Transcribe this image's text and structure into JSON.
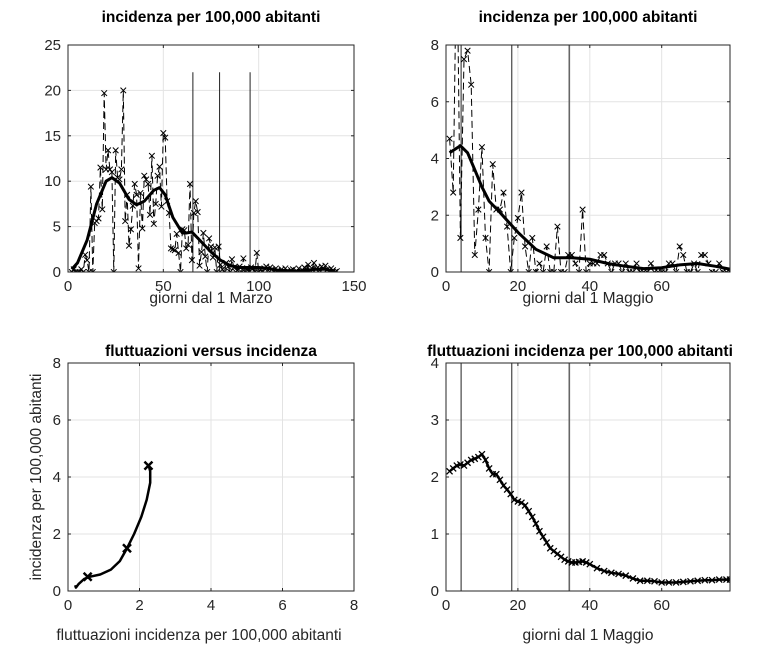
{
  "chart_data": [
    {
      "type": "line",
      "title": "incidenza per 100,000 abitanti",
      "xlabel": "giorni dal 1 Marzo",
      "ylabel": "",
      "xlim": [
        0,
        150
      ],
      "ylim": [
        0,
        25
      ],
      "xticks": [
        0,
        50,
        100,
        150
      ],
      "yticks": [
        0,
        5,
        10,
        15,
        20,
        25
      ],
      "grid": true,
      "vlines": [
        65.5,
        79.5,
        95.5
      ],
      "vline_top": 22,
      "raw": {
        "style": "dashed-with-x-markers",
        "x": [
          2,
          3,
          4,
          5,
          6,
          7,
          8,
          9,
          10,
          11,
          12,
          13,
          14,
          15,
          16,
          17,
          18,
          19,
          20,
          21,
          22,
          23,
          24,
          25,
          26,
          27,
          28,
          29,
          30,
          31,
          32,
          33,
          34,
          35,
          36,
          37,
          38,
          39,
          40,
          41,
          42,
          43,
          44,
          45,
          46,
          47,
          48,
          49,
          50,
          51,
          52,
          53,
          54,
          55,
          56,
          57,
          58,
          59,
          60,
          61,
          62,
          63,
          64,
          65,
          66,
          67,
          68,
          69,
          70,
          71,
          72,
          73,
          74,
          75,
          76,
          77,
          78,
          79,
          80,
          81,
          82,
          83,
          84,
          85,
          86,
          87,
          88,
          89,
          90,
          91,
          92,
          93,
          94,
          95,
          96,
          97,
          98,
          99,
          100,
          101,
          102,
          103,
          104,
          105,
          106,
          107,
          108,
          109,
          110,
          111,
          112,
          113,
          114,
          115,
          116,
          117,
          118,
          119,
          120,
          121,
          122,
          123,
          124,
          125,
          126,
          127,
          128,
          129,
          130,
          131,
          132,
          133,
          134,
          135,
          136,
          137,
          138,
          139,
          140,
          141
        ],
        "y": [
          0,
          0.3,
          0,
          0,
          0,
          0.3,
          0,
          1.9,
          1.3,
          0,
          9.4,
          0,
          5.4,
          5.6,
          5.9,
          11.5,
          6.9,
          19.7,
          11.3,
          13.4,
          11.3,
          11,
          0,
          13.4,
          10.4,
          10.2,
          11.3,
          20,
          5.6,
          8.5,
          2.9,
          4.7,
          7.3,
          9.7,
          8.5,
          0.4,
          8.7,
          4.8,
          10.6,
          10.2,
          9.7,
          6.3,
          12.8,
          5.3,
          7.5,
          10.6,
          11.6,
          7.2,
          15.3,
          14.8,
          7.8,
          6.5,
          2.6,
          2.5,
          2.4,
          4.2,
          2.1,
          0,
          4.7,
          4.6,
          2.6,
          3,
          9.7,
          1.3,
          6.5,
          7.8,
          6.6,
          0.7,
          2.2,
          4.3,
          1.7,
          0,
          3.7,
          2.8,
          1.6,
          2.7,
          0,
          2.8,
          0.8,
          0.3,
          0,
          1,
          0.6,
          0,
          1.4,
          0.5,
          0,
          0.2,
          0.6,
          0,
          1.5,
          0,
          0.4,
          0,
          0.5,
          0.4,
          0,
          2.1,
          0,
          0.3,
          0,
          0.4,
          0.6,
          0.2,
          0.5,
          0.3,
          0,
          0.4,
          0.2,
          0,
          0.3,
          0,
          0.4,
          0.1,
          0,
          0.2,
          0.3,
          0,
          0.1,
          0.4,
          0,
          0.2,
          0.5,
          0.3,
          0.8,
          0.2,
          0.4,
          1,
          0.3,
          0.5,
          0.2,
          0.6,
          0.4,
          0.7,
          0.3,
          0.1,
          0.4,
          0.2,
          0,
          0.1
        ]
      },
      "smooth": {
        "x": [
          2,
          5,
          10,
          15,
          20,
          23,
          27,
          32,
          36,
          40,
          45,
          48,
          51,
          55,
          60,
          62,
          65,
          70,
          75,
          80,
          85,
          90,
          100,
          105,
          110,
          120,
          130,
          135,
          140
        ],
        "y": [
          0.3,
          1,
          3.5,
          7.5,
          10,
          10.4,
          9.8,
          8,
          7.4,
          7.8,
          9,
          9.3,
          8.5,
          6,
          4.3,
          4.3,
          4.4,
          3.3,
          2.2,
          1.3,
          0.7,
          0.5,
          0.5,
          0.4,
          0.2,
          0.1,
          0.3,
          0.3,
          0.1
        ]
      }
    },
    {
      "type": "line",
      "title": "incidenza per 100,000 abitanti",
      "xlabel": "giorni dal 1 Maggio",
      "ylabel": "",
      "xlim": [
        0,
        79
      ],
      "ylim": [
        0,
        8
      ],
      "xticks": [
        0,
        20,
        40,
        60
      ],
      "yticks": [
        0,
        2,
        4,
        6,
        8
      ],
      "grid": true,
      "vlines": [
        4.2,
        18.3,
        34.3
      ],
      "raw": {
        "style": "dashed-with-x-markers",
        "x": [
          1,
          2,
          3,
          4,
          5,
          6,
          7,
          8,
          9,
          10,
          11,
          12,
          13,
          14,
          15,
          16,
          17,
          18,
          19,
          20,
          21,
          22,
          23,
          24,
          25,
          26,
          27,
          28,
          29,
          30,
          31,
          32,
          33,
          34,
          35,
          36,
          37,
          38,
          39,
          40,
          41,
          42,
          43,
          44,
          45,
          46,
          47,
          48,
          49,
          50,
          51,
          52,
          53,
          54,
          55,
          56,
          57,
          58,
          59,
          60,
          61,
          62,
          63,
          64,
          65,
          66,
          67,
          68,
          69,
          70,
          71,
          72,
          73,
          74,
          75,
          76,
          77,
          78,
          79
        ],
        "y": [
          4.7,
          2.8,
          12,
          1.2,
          7.5,
          7.8,
          6.6,
          0.6,
          2.2,
          4.4,
          1.2,
          0,
          3.8,
          2.2,
          2.2,
          2.8,
          1.6,
          0,
          1.2,
          1.9,
          2.8,
          0.9,
          0,
          1.2,
          0,
          0.3,
          0,
          0.9,
          0,
          0,
          1.6,
          0,
          0,
          0.6,
          0.6,
          0.3,
          0,
          2.2,
          0,
          0.3,
          0.3,
          0.3,
          0.6,
          0.6,
          0.3,
          0,
          0.3,
          0.3,
          0,
          0.3,
          0,
          0,
          0.3,
          0,
          0,
          0,
          0.3,
          0,
          0,
          0,
          0,
          0.3,
          0.3,
          0,
          0.9,
          0.6,
          0,
          0,
          0.3,
          0,
          0.6,
          0.6,
          0.3,
          0,
          0,
          0.3,
          0,
          0,
          0
        ]
      },
      "smooth": {
        "x": [
          1,
          4,
          6,
          8,
          10,
          12,
          15,
          20,
          25,
          30,
          35,
          40,
          45,
          50,
          55,
          60,
          65,
          70,
          75,
          79
        ],
        "y": [
          4.2,
          4.45,
          4.2,
          3.6,
          3,
          2.5,
          2.1,
          1.4,
          0.8,
          0.5,
          0.5,
          0.45,
          0.3,
          0.2,
          0.12,
          0.15,
          0.25,
          0.3,
          0.2,
          0.1
        ]
      }
    },
    {
      "type": "line",
      "title": "fluttuazioni versus incidenza",
      "xlabel": "fluttuazioni incidenza per 100,000 abitanti",
      "ylabel": "incidenza per 100,000 abitanti",
      "xlim": [
        0,
        8
      ],
      "ylim": [
        0,
        8
      ],
      "xticks": [
        0,
        2,
        4,
        6,
        8
      ],
      "yticks": [
        0,
        2,
        4,
        6,
        8
      ],
      "grid": true,
      "curve": {
        "x": [
          0.2,
          0.22,
          0.3,
          0.45,
          0.6,
          0.9,
          1.2,
          1.45,
          1.65,
          1.85,
          2.05,
          2.2,
          2.3,
          2.3,
          2.25
        ],
        "y": [
          0.2,
          0.12,
          0.25,
          0.42,
          0.5,
          0.58,
          0.75,
          1.05,
          1.5,
          2.0,
          2.6,
          3.2,
          3.8,
          4.2,
          4.45
        ]
      },
      "markers": {
        "x": [
          0.55,
          1.65,
          2.25
        ],
        "y": [
          0.5,
          1.5,
          4.4
        ]
      }
    },
    {
      "type": "line",
      "title": "fluttuazioni incidenza per 100,000 abitanti",
      "xlabel": "giorni dal 1 Maggio",
      "ylabel": "",
      "xlim": [
        0,
        79
      ],
      "ylim": [
        0,
        4
      ],
      "xticks": [
        0,
        20,
        40,
        60
      ],
      "yticks": [
        0,
        1,
        2,
        3,
        4
      ],
      "grid": true,
      "vlines": [
        4.2,
        18.3,
        34.3
      ],
      "series": {
        "style": "solid-with-x-markers",
        "x": [
          1,
          2,
          3,
          4,
          5,
          6,
          7,
          8,
          9,
          10,
          11,
          12,
          13,
          14,
          15,
          16,
          17,
          18,
          19,
          20,
          21,
          22,
          23,
          24,
          25,
          26,
          27,
          28,
          29,
          30,
          31,
          32,
          33,
          34,
          35,
          36,
          37,
          38,
          39,
          40,
          42,
          44,
          46,
          48,
          50,
          52,
          54,
          56,
          58,
          60,
          62,
          64,
          66,
          68,
          70,
          72,
          74,
          76,
          78,
          79
        ],
        "y": [
          2.1,
          2.15,
          2.2,
          2.22,
          2.2,
          2.25,
          2.3,
          2.32,
          2.35,
          2.4,
          2.3,
          2.15,
          2.05,
          2.05,
          1.95,
          1.85,
          1.78,
          1.7,
          1.6,
          1.57,
          1.55,
          1.5,
          1.4,
          1.3,
          1.18,
          1.05,
          0.95,
          0.85,
          0.75,
          0.7,
          0.65,
          0.6,
          0.55,
          0.52,
          0.5,
          0.5,
          0.51,
          0.52,
          0.5,
          0.47,
          0.4,
          0.35,
          0.32,
          0.3,
          0.27,
          0.22,
          0.18,
          0.18,
          0.17,
          0.15,
          0.15,
          0.15,
          0.16,
          0.17,
          0.18,
          0.19,
          0.19,
          0.2,
          0.2,
          0.2
        ]
      }
    }
  ]
}
